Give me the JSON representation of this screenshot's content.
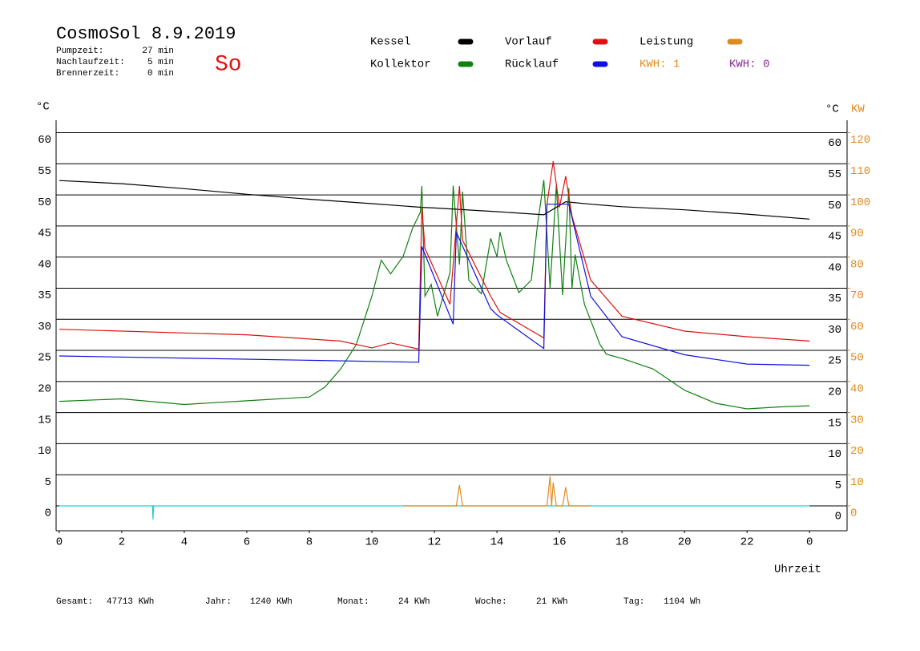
{
  "chart_data": {
    "type": "line",
    "title": "CosmoSol 8.9.2019",
    "day": "So",
    "info": [
      {
        "label": "Pumpzeit:",
        "value": "27 min"
      },
      {
        "label": "Nachlaufzeit:",
        "value": "5 min"
      },
      {
        "label": "Brennerzeit:",
        "value": "0 min"
      }
    ],
    "kwh_labels": [
      {
        "text": "KWH: 1",
        "color": "#e08a1e"
      },
      {
        "text": "KWH: 0",
        "color": "#8a2a9a"
      }
    ],
    "y_label": "°C",
    "y2_label": "°C",
    "y2_unit": "KW",
    "y2_color": "#e08a1e",
    "x_label": "Uhrzeit",
    "xlim": [
      -0.1,
      25.2
    ],
    "xticks": [
      0,
      2,
      4,
      6,
      8,
      10,
      12,
      14,
      16,
      18,
      20,
      22,
      {
        "value": 24,
        "label": "0"
      }
    ],
    "ylim": [
      -4,
      62
    ],
    "yticks": [
      0,
      5,
      10,
      15,
      20,
      25,
      30,
      35,
      40,
      45,
      50,
      55,
      60
    ],
    "y2lim": [
      -8,
      124
    ],
    "y2ticks": [
      0,
      10,
      20,
      30,
      40,
      50,
      60,
      70,
      80,
      90,
      100,
      110,
      120
    ],
    "grid": true,
    "series": [
      {
        "name": "Kessel",
        "color": "#000000",
        "x": [
          0,
          2,
          4,
          6,
          8,
          10,
          11.6,
          12,
          14,
          15.5,
          16.2,
          17,
          18,
          20,
          22,
          24
        ],
        "values": [
          52.3,
          51.8,
          51,
          50.1,
          49.3,
          48.6,
          48,
          47.9,
          47.3,
          46.8,
          48.9,
          48.5,
          48.1,
          47.6,
          46.9,
          46.1
        ]
      },
      {
        "name": "Vorlauf",
        "color": "#e01010",
        "x": [
          0,
          6,
          9,
          10,
          10.6,
          11.5,
          11.6,
          11.7,
          12.5,
          12.8,
          12.9,
          13.8,
          14.1,
          15.5,
          15.6,
          15.8,
          16,
          16.2,
          16.4,
          17,
          18,
          20,
          22,
          24
        ],
        "values": [
          28.4,
          27.5,
          26.5,
          25.4,
          26.2,
          25.2,
          48.1,
          41.4,
          32.4,
          51.4,
          42.7,
          33.7,
          31.1,
          27,
          48.5,
          55.4,
          48,
          53,
          46.6,
          36.3,
          30.5,
          28.1,
          27.2,
          26.5
        ]
      },
      {
        "name": "Leistung",
        "color": "#e08a1e",
        "axis": "y2",
        "x": [
          11,
          12.7,
          12.8,
          12.9,
          15.6,
          15.7,
          15.75,
          15.8,
          15.9,
          16.1,
          16.2,
          16.3,
          17
        ],
        "values": [
          0,
          0,
          6.7,
          0,
          0,
          9.5,
          0,
          7.5,
          0,
          0,
          6,
          0,
          0
        ]
      },
      {
        "name": "Kollektor",
        "color": "#108010",
        "x": [
          0,
          2,
          4,
          6,
          8,
          8.5,
          9,
          9.5,
          10,
          10.3,
          10.6,
          11,
          11.3,
          11.55,
          11.6,
          11.7,
          11.9,
          12.1,
          12.5,
          12.6,
          12.8,
          12.9,
          13.1,
          13.5,
          13.8,
          14,
          14.1,
          14.3,
          14.7,
          15.1,
          15.3,
          15.5,
          15.7,
          15.9,
          16.1,
          16.3,
          16.4,
          16.5,
          16.8,
          17.3,
          17.5,
          18,
          19,
          20,
          21,
          22,
          23,
          24
        ],
        "values": [
          16.8,
          17.2,
          16.3,
          16.9,
          17.5,
          19.1,
          22,
          25.9,
          33.7,
          39.5,
          37.3,
          40.1,
          44.6,
          47.2,
          51.4,
          33.7,
          35.6,
          30.5,
          37.5,
          51.5,
          38.8,
          50.5,
          36.3,
          34.1,
          43,
          40.1,
          44,
          39.5,
          34.3,
          36.3,
          45.3,
          52.4,
          35,
          51.5,
          33.9,
          51.1,
          35,
          40.4,
          32.4,
          25.9,
          24.4,
          23.7,
          22,
          18.6,
          16.5,
          15.6,
          15.9,
          16.1
        ]
      },
      {
        "name": "Rücklauf",
        "color": "#1010e0",
        "x": [
          0,
          8,
          11.5,
          11.6,
          12.6,
          12.7,
          13.8,
          14,
          15.5,
          15.6,
          16.3,
          17,
          18,
          20,
          22,
          24
        ],
        "values": [
          24.1,
          23.4,
          23.1,
          41.7,
          29.2,
          44,
          31.7,
          30.7,
          25.3,
          48.5,
          48.5,
          33.7,
          27.2,
          24.3,
          22.8,
          22.6
        ]
      },
      {
        "color": "#20d0d0",
        "x": [
          0,
          2.98,
          3,
          3.02,
          24
        ],
        "values": [
          0,
          0,
          -2.2,
          0,
          0
        ]
      }
    ],
    "footer": [
      {
        "label": "Gesamt:",
        "value": "47713 KWh"
      },
      {
        "label": "Jahr:",
        "value": "1240 KWh"
      },
      {
        "label": "Monat:",
        "value": "24 KWh"
      },
      {
        "label": "Woche:",
        "value": "21 KWh"
      },
      {
        "label": "Tag:",
        "value": "1104 Wh"
      }
    ]
  }
}
